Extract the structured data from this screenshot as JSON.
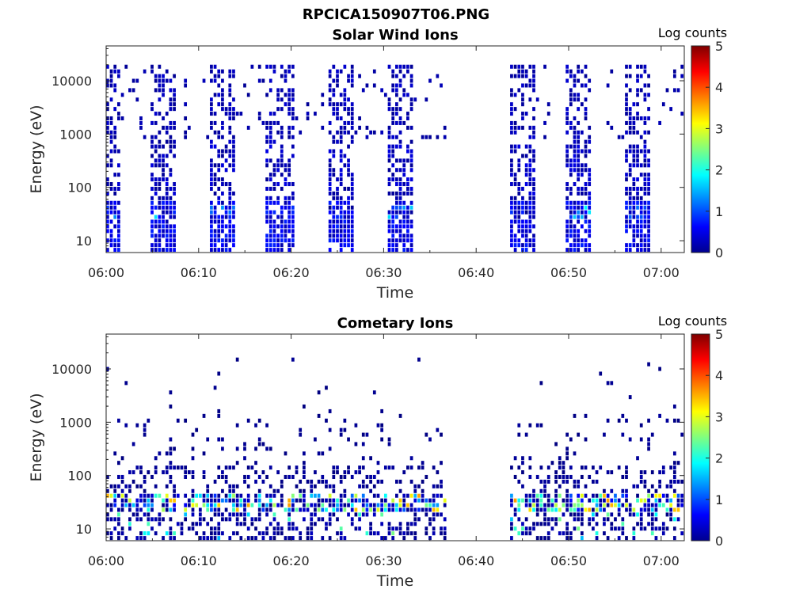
{
  "figure_title": "RPCICA150907T06.PNG",
  "chart_data": [
    {
      "type": "heatmap",
      "title": "Solar Wind Ions",
      "xlabel": "Time",
      "ylabel": "Energy (eV)",
      "x_ticks": [
        "06:00",
        "06:10",
        "06:20",
        "06:30",
        "06:40",
        "06:50",
        "07:00"
      ],
      "x_range_minutes": [
        0,
        62.5
      ],
      "yscale": "log",
      "y_ticks": [
        10,
        100,
        1000,
        10000
      ],
      "y_tick_labels": [
        "10",
        "100",
        "1000",
        "10000"
      ],
      "ylim": [
        6,
        45000
      ],
      "colorbar": {
        "label": "Log counts",
        "range": [
          0,
          5
        ],
        "ticks": [
          "0",
          "1",
          "2",
          "3",
          "4",
          "5"
        ],
        "colormap": "jet"
      },
      "data_gaps_minutes": [
        [
          37.0,
          43.5
        ]
      ],
      "activity_bands": [
        {
          "start": 0.0,
          "end": 1.6,
          "level_max": 1.8
        },
        {
          "start": 4.7,
          "end": 7.7,
          "level_max": 1.8
        },
        {
          "start": 11.1,
          "end": 14.2,
          "level_max": 1.6
        },
        {
          "start": 17.4,
          "end": 20.6,
          "level_max": 0.9
        },
        {
          "start": 23.9,
          "end": 27.0,
          "level_max": 0.9
        },
        {
          "start": 30.3,
          "end": 33.4,
          "level_max": 1.8
        },
        {
          "start": 43.5,
          "end": 46.5,
          "level_max": 0.9
        },
        {
          "start": 49.5,
          "end": 52.5,
          "level_max": 1.9
        },
        {
          "start": 56.0,
          "end": 59.0,
          "level_max": 1.9
        }
      ]
    },
    {
      "type": "heatmap",
      "title": "Cometary Ions",
      "xlabel": "Time",
      "ylabel": "Energy (eV)",
      "x_ticks": [
        "06:00",
        "06:10",
        "06:20",
        "06:30",
        "06:40",
        "06:50",
        "07:00"
      ],
      "x_range_minutes": [
        0,
        62.5
      ],
      "yscale": "log",
      "y_ticks": [
        10,
        100,
        1000,
        10000
      ],
      "y_tick_labels": [
        "10",
        "100",
        "1000",
        "10000"
      ],
      "ylim": [
        6,
        45000
      ],
      "colorbar": {
        "label": "Log counts",
        "range": [
          0,
          5
        ],
        "ticks": [
          "0",
          "1",
          "2",
          "3",
          "4",
          "5"
        ],
        "colormap": "jet"
      },
      "data_gaps_minutes": [
        [
          37.0,
          43.5
        ]
      ],
      "peak_energy_band_ev": [
        20,
        45
      ],
      "peak_level_max": 3.6
    }
  ]
}
